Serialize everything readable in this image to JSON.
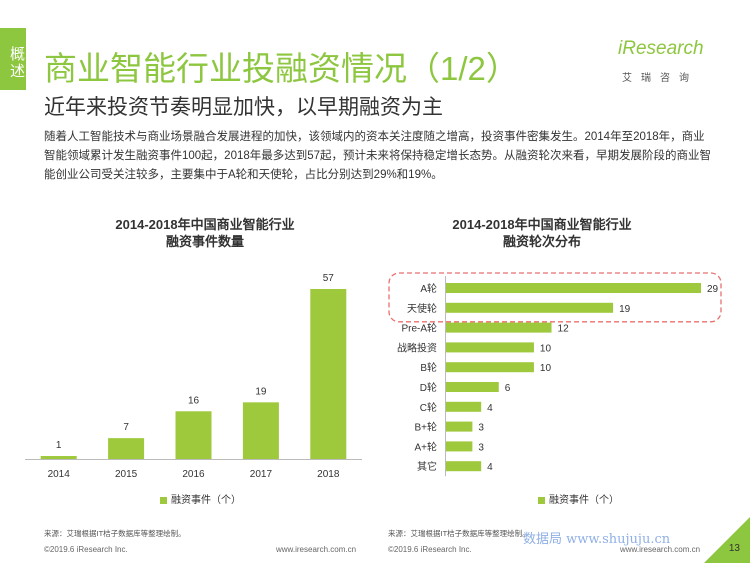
{
  "header": {
    "side_tab": "概述",
    "title": "商业智能行业投融资情况（1/2）",
    "subtitle": "近年来投资节奏明显加快，以早期融资为主",
    "description": "随着人工智能技术与商业场景融合发展进程的加快，该领域内的资本关注度随之增高，投资事件密集发生。2014年至2018年，商业智能领域累计发生融资事件100起，2018年最多达到57起，预计未来将保持稳定增长态势。从融资轮次来看，早期发展阶段的商业智能创业公司受关注较多，主要集中于A轮和天使轮，占比分别达到29%和19%。",
    "logo_text": "iResearch",
    "logo_cn": "艾瑞咨询"
  },
  "colors": {
    "accent": "#8dc63f",
    "bar": "#9fc93c",
    "highlight_border": "#e8716f"
  },
  "chart_data": [
    {
      "type": "bar",
      "title": "2014-2018年中国商业智能行业\n融资事件数量",
      "categories": [
        "2014",
        "2015",
        "2016",
        "2017",
        "2018"
      ],
      "values": [
        1,
        7,
        16,
        19,
        57
      ],
      "legend": "融资事件（个）",
      "xlabel": "",
      "ylabel": ""
    },
    {
      "type": "bar",
      "orientation": "horizontal",
      "title": "2014-2018年中国商业智能行业\n融资轮次分布",
      "categories": [
        "A轮",
        "天使轮",
        "Pre-A轮",
        "战略投资",
        "B轮",
        "D轮",
        "C轮",
        "B+轮",
        "A+轮",
        "其它"
      ],
      "values": [
        29,
        19,
        12,
        10,
        10,
        6,
        4,
        3,
        3,
        4
      ],
      "highlighted": [
        "A轮",
        "天使轮"
      ],
      "legend": "融资事件（个）",
      "xlabel": "",
      "ylabel": ""
    }
  ],
  "footer": {
    "source_left": "来源：艾瑞根据IT桔子数据库等整理绘制。",
    "source_right": "来源：艾瑞根据IT桔子数据库等整理绘制。",
    "copyright_left": "©2019.6 iResearch Inc.",
    "url_left": "www.iresearch.com.cn",
    "copyright_right": "©2019.6 iResearch Inc.",
    "url_right": "www.iresearch.com.cn",
    "page": "13",
    "watermark": "数据局 www.shujuju.cn"
  }
}
